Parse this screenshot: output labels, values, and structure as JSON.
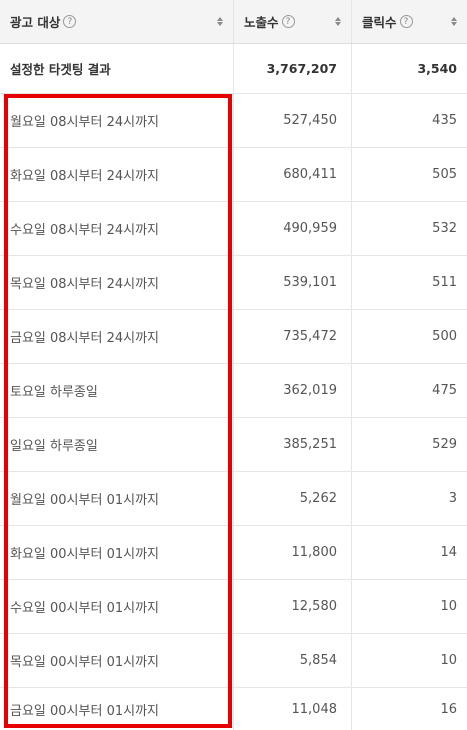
{
  "header": {
    "col1": "광고 대상",
    "col2": "노출수",
    "col3": "클릭수",
    "help_icon": "question-circle-icon",
    "sort_icon": "sort-updown-icon"
  },
  "summary": {
    "label": "설정한 타겟팅 결과",
    "impressions": "3,767,207",
    "clicks": "3,540"
  },
  "rows": [
    {
      "label": "월요일 08시부터 24시까지",
      "impressions": "527,450",
      "clicks": "435"
    },
    {
      "label": "화요일 08시부터 24시까지",
      "impressions": "680,411",
      "clicks": "505"
    },
    {
      "label": "수요일 08시부터 24시까지",
      "impressions": "490,959",
      "clicks": "532"
    },
    {
      "label": "목요일 08시부터 24시까지",
      "impressions": "539,101",
      "clicks": "511"
    },
    {
      "label": "금요일 08시부터 24시까지",
      "impressions": "735,472",
      "clicks": "500"
    },
    {
      "label": "토요일 하루종일",
      "impressions": "362,019",
      "clicks": "475"
    },
    {
      "label": "일요일 하루종일",
      "impressions": "385,251",
      "clicks": "529"
    },
    {
      "label": "월요일 00시부터 01시까지",
      "impressions": "5,262",
      "clicks": "3"
    },
    {
      "label": "화요일 00시부터 01시까지",
      "impressions": "11,800",
      "clicks": "14"
    },
    {
      "label": "수요일 00시부터 01시까지",
      "impressions": "12,580",
      "clicks": "10"
    },
    {
      "label": "목요일 00시부터 01시까지",
      "impressions": "5,854",
      "clicks": "10"
    },
    {
      "label": "금요일 00시부터 01시까지",
      "impressions": "11,048",
      "clicks": "16"
    }
  ],
  "colors": {
    "highlight": "#e60000",
    "header_bg": "#f4f4f4",
    "border": "#e5e5e5"
  }
}
